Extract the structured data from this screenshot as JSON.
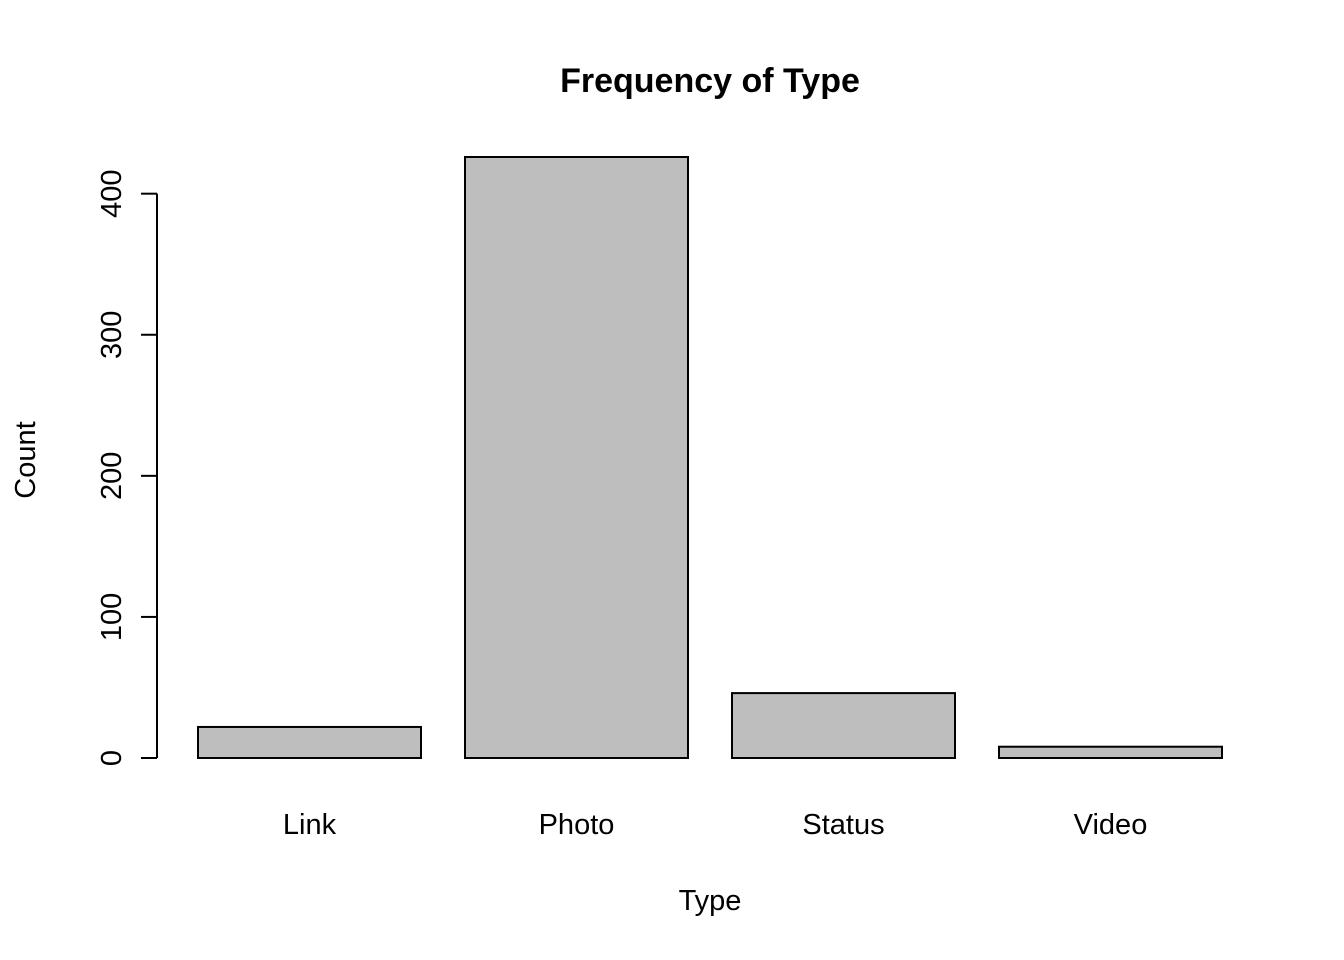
{
  "chart_data": {
    "type": "bar",
    "title": "Frequency of Type",
    "xlabel": "Type",
    "ylabel": "Count",
    "categories": [
      "Link",
      "Photo",
      "Status",
      "Video"
    ],
    "values": [
      22,
      426,
      46,
      8
    ],
    "ylim": [
      0,
      426
    ],
    "yticks": [
      0,
      100,
      200,
      300,
      400
    ],
    "ytick_labels": [
      "0",
      "100",
      "200",
      "300",
      "400"
    ],
    "grid": false,
    "bar_color": "#bebebe",
    "edge_color": "#000000"
  }
}
